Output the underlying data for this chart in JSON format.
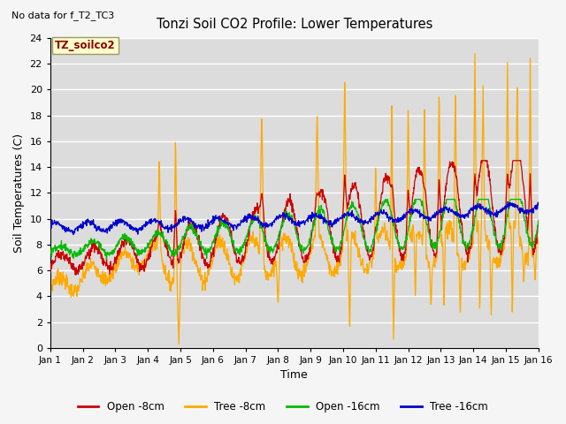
{
  "title": "Tonzi Soil CO2 Profile: Lower Temperatures",
  "subtitle": "No data for f_T2_TC3",
  "xlabel": "Time",
  "ylabel": "Soil Temperatures (C)",
  "ylim": [
    0,
    24
  ],
  "yticks": [
    0,
    2,
    4,
    6,
    8,
    10,
    12,
    14,
    16,
    18,
    20,
    22,
    24
  ],
  "xtick_labels": [
    "Jan 1",
    "Jan 2",
    "Jan 3",
    "Jan 4",
    "Jan 5",
    "Jan 6",
    "Jan 7",
    "Jan 8",
    "Jan 9",
    "Jan 10",
    "Jan 11",
    "Jan 12",
    "Jan 13",
    "Jan 14",
    "Jan 15",
    "Jan 16"
  ],
  "series_colors": {
    "open_8cm": "#cc0000",
    "tree_8cm": "#ffaa00",
    "open_16cm": "#00bb00",
    "tree_16cm": "#0000cc"
  },
  "legend_labels": [
    "Open -8cm",
    "Tree -8cm",
    "Open -16cm",
    "Tree -16cm"
  ],
  "annotation_box_color": "#ffffcc",
  "annotation_box_text": "TZ_soilco2",
  "annotation_text_color": "#880000",
  "plot_bg_color": "#dcdcdc",
  "grid_color": "#ffffff",
  "fig_bg_color": "#f5f5f5"
}
